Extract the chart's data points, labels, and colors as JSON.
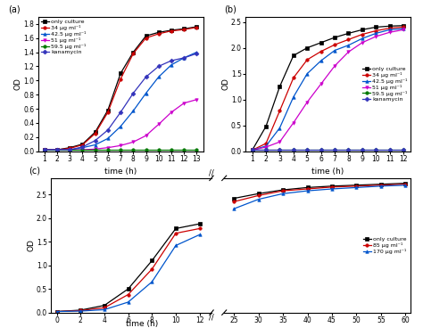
{
  "panel_a": {
    "title": "(a)",
    "xlabel": "time (h)",
    "ylabel": "OD",
    "xlim": [
      0.5,
      13.5
    ],
    "ylim": [
      0,
      1.9
    ],
    "xticks": [
      1,
      2,
      3,
      4,
      5,
      6,
      7,
      8,
      9,
      10,
      11,
      12,
      13
    ],
    "yticks": [
      0.0,
      0.2,
      0.4,
      0.6,
      0.8,
      1.0,
      1.2,
      1.4,
      1.6,
      1.8
    ],
    "series": [
      {
        "label": "only culture",
        "color": "#000000",
        "marker": "s",
        "x": [
          1,
          2,
          3,
          4,
          5,
          6,
          7,
          8,
          9,
          10,
          11,
          12,
          13
        ],
        "y": [
          0.02,
          0.02,
          0.05,
          0.1,
          0.27,
          0.58,
          1.1,
          1.4,
          1.63,
          1.68,
          1.71,
          1.73,
          1.76
        ]
      },
      {
        "label": "34 μg ml⁻¹",
        "color": "#cc0000",
        "marker": "o",
        "x": [
          1,
          2,
          3,
          4,
          5,
          6,
          7,
          8,
          9,
          10,
          11,
          12,
          13
        ],
        "y": [
          0.02,
          0.02,
          0.04,
          0.09,
          0.25,
          0.55,
          1.02,
          1.38,
          1.6,
          1.66,
          1.7,
          1.72,
          1.75
        ]
      },
      {
        "label": "42.5 μg ml⁻¹",
        "color": "#0055cc",
        "marker": "^",
        "x": [
          1,
          2,
          3,
          4,
          5,
          6,
          7,
          8,
          9,
          10,
          11,
          12,
          13
        ],
        "y": [
          0.02,
          0.02,
          0.02,
          0.05,
          0.09,
          0.18,
          0.35,
          0.57,
          0.82,
          1.05,
          1.22,
          1.32,
          1.4
        ]
      },
      {
        "label": "51 μg ml⁻¹",
        "color": "#cc00cc",
        "marker": "v",
        "x": [
          1,
          2,
          3,
          4,
          5,
          6,
          7,
          8,
          9,
          10,
          11,
          12,
          13
        ],
        "y": [
          0.02,
          0.02,
          0.02,
          0.02,
          0.03,
          0.05,
          0.08,
          0.13,
          0.22,
          0.38,
          0.55,
          0.68,
          0.73
        ]
      },
      {
        "label": "59.5 μg ml⁻¹",
        "color": "#007700",
        "marker": "o",
        "x": [
          1,
          2,
          3,
          4,
          5,
          6,
          7,
          8,
          9,
          10,
          11,
          12,
          13
        ],
        "y": [
          0.02,
          0.02,
          0.02,
          0.02,
          0.02,
          0.02,
          0.02,
          0.02,
          0.02,
          0.02,
          0.02,
          0.02,
          0.02
        ]
      },
      {
        "label": "kanamycin",
        "color": "#3333bb",
        "marker": "D",
        "x": [
          1,
          2,
          3,
          4,
          5,
          6,
          7,
          8,
          9,
          10,
          11,
          12,
          13
        ],
        "y": [
          0.02,
          0.02,
          0.02,
          0.06,
          0.15,
          0.3,
          0.55,
          0.82,
          1.05,
          1.2,
          1.28,
          1.32,
          1.38
        ]
      }
    ]
  },
  "panel_b": {
    "title": "(b)",
    "xlabel": "time (h)",
    "ylabel": "OD",
    "xlim": [
      0.5,
      12.5
    ],
    "ylim": [
      0,
      2.6
    ],
    "xticks": [
      1,
      2,
      3,
      4,
      5,
      6,
      7,
      8,
      9,
      10,
      11,
      12
    ],
    "yticks": [
      0.0,
      0.5,
      1.0,
      1.5,
      2.0,
      2.5
    ],
    "series": [
      {
        "label": "only culture",
        "color": "#000000",
        "marker": "s",
        "x": [
          1,
          2,
          3,
          4,
          5,
          6,
          7,
          8,
          9,
          10,
          11,
          12
        ],
        "y": [
          0.02,
          0.48,
          1.25,
          1.85,
          2.0,
          2.1,
          2.2,
          2.28,
          2.35,
          2.4,
          2.42,
          2.43
        ]
      },
      {
        "label": "34 μg ml⁻¹",
        "color": "#cc0000",
        "marker": "o",
        "x": [
          1,
          2,
          3,
          4,
          5,
          6,
          7,
          8,
          9,
          10,
          11,
          12
        ],
        "y": [
          0.02,
          0.15,
          0.78,
          1.42,
          1.77,
          1.93,
          2.06,
          2.16,
          2.26,
          2.33,
          2.38,
          2.4
        ]
      },
      {
        "label": "42.5 μg ml⁻¹",
        "color": "#0055cc",
        "marker": "^",
        "x": [
          1,
          2,
          3,
          4,
          5,
          6,
          7,
          8,
          9,
          10,
          11,
          12
        ],
        "y": [
          0.02,
          0.1,
          0.45,
          1.05,
          1.5,
          1.75,
          1.95,
          2.05,
          2.18,
          2.28,
          2.35,
          2.37
        ]
      },
      {
        "label": "51 μg ml⁻¹",
        "color": "#cc00cc",
        "marker": "v",
        "x": [
          1,
          2,
          3,
          4,
          5,
          6,
          7,
          8,
          9,
          10,
          11,
          12
        ],
        "y": [
          0.02,
          0.08,
          0.18,
          0.55,
          0.95,
          1.3,
          1.65,
          1.92,
          2.1,
          2.22,
          2.3,
          2.35
        ]
      },
      {
        "label": "59.5 μg ml⁻¹",
        "color": "#007700",
        "marker": "o",
        "x": [
          1,
          2,
          3,
          4,
          5,
          6,
          7,
          8,
          9,
          10,
          11,
          12
        ],
        "y": [
          0.02,
          0.02,
          0.02,
          0.02,
          0.02,
          0.02,
          0.02,
          0.02,
          0.02,
          0.02,
          0.02,
          0.02
        ]
      },
      {
        "label": "kanamycin",
        "color": "#3333bb",
        "marker": "D",
        "x": [
          1,
          2,
          3,
          4,
          5,
          6,
          7,
          8,
          9,
          10,
          11,
          12
        ],
        "y": [
          0.02,
          0.02,
          0.02,
          0.02,
          0.02,
          0.02,
          0.02,
          0.02,
          0.02,
          0.02,
          0.02,
          0.02
        ]
      }
    ]
  },
  "panel_c": {
    "title": "(c)",
    "xlabel": "time (h)",
    "ylabel": "OD",
    "ylim": [
      0,
      2.85
    ],
    "yticks": [
      0.0,
      0.5,
      1.0,
      1.5,
      2.0,
      2.5
    ],
    "xticks_left": [
      0,
      2,
      4,
      6,
      8,
      10,
      12
    ],
    "xticks_right": [
      25,
      30,
      35,
      40,
      45,
      50,
      55,
      60
    ],
    "series": [
      {
        "label": "only culture",
        "color": "#000000",
        "marker": "s",
        "x_left": [
          0,
          2,
          4,
          6,
          8,
          10,
          12
        ],
        "x_right": [
          25,
          30,
          35,
          40,
          45,
          50,
          55,
          60
        ],
        "y_left": [
          0.02,
          0.05,
          0.15,
          0.5,
          1.1,
          1.78,
          1.88
        ],
        "y_right": [
          2.42,
          2.52,
          2.6,
          2.65,
          2.68,
          2.7,
          2.72,
          2.74
        ]
      },
      {
        "label": "85 μg ml⁻¹",
        "color": "#cc0000",
        "marker": "o",
        "x_left": [
          0,
          2,
          4,
          6,
          8,
          10,
          12
        ],
        "x_right": [
          25,
          30,
          35,
          40,
          45,
          50,
          55,
          60
        ],
        "y_left": [
          0.02,
          0.04,
          0.1,
          0.38,
          0.92,
          1.68,
          1.78
        ],
        "y_right": [
          2.35,
          2.48,
          2.58,
          2.62,
          2.66,
          2.68,
          2.7,
          2.72
        ]
      },
      {
        "label": "170 μg ml⁻¹",
        "color": "#0055cc",
        "marker": "^",
        "x_left": [
          0,
          2,
          4,
          6,
          8,
          10,
          12
        ],
        "x_right": [
          25,
          30,
          35,
          40,
          45,
          50,
          55,
          60
        ],
        "y_left": [
          0.02,
          0.03,
          0.06,
          0.22,
          0.65,
          1.42,
          1.65
        ],
        "y_right": [
          2.2,
          2.4,
          2.52,
          2.58,
          2.62,
          2.65,
          2.68,
          2.7
        ]
      }
    ]
  }
}
